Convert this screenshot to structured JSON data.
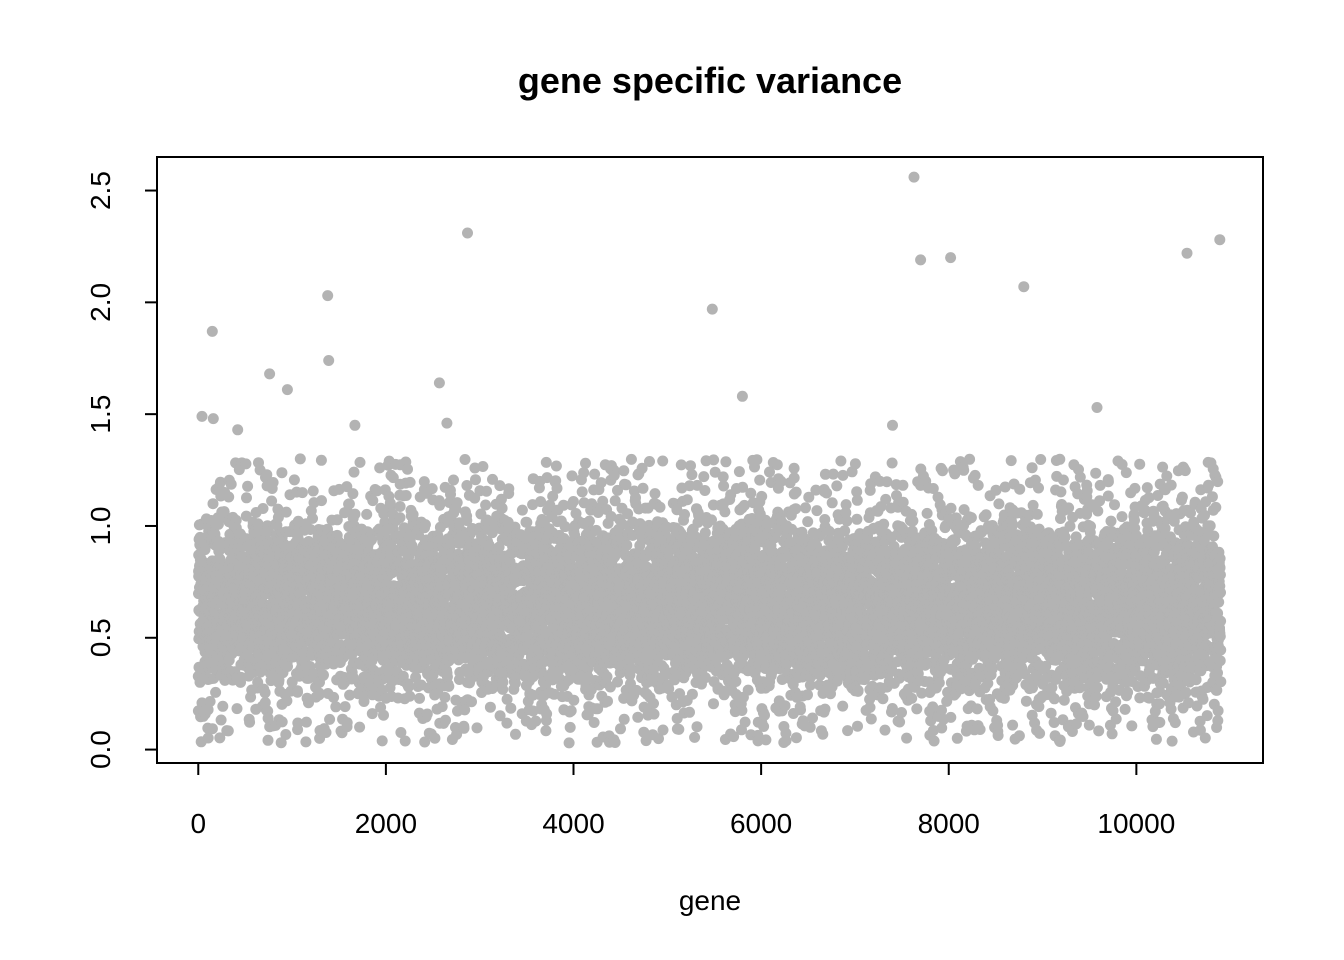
{
  "chart_data": {
    "type": "scatter",
    "title": "gene specific variance",
    "xlabel": "gene",
    "ylabel": "",
    "xlim": [
      -440,
      11350
    ],
    "ylim": [
      -0.06,
      2.65
    ],
    "xticks": [
      0,
      2000,
      4000,
      6000,
      8000,
      10000
    ],
    "xtick_labels": [
      "0",
      "2000",
      "4000",
      "6000",
      "8000",
      "10000"
    ],
    "yticks": [
      0.0,
      0.5,
      1.0,
      1.5,
      2.0,
      2.5
    ],
    "ytick_labels": [
      "0.0",
      "0.5",
      "1.0",
      "1.5",
      "2.0",
      "2.5"
    ],
    "n_points": 10900,
    "point_color": "#b3b3b3",
    "grid": false,
    "legend": "none",
    "outliers": [
      {
        "x": 150,
        "y": 1.87
      },
      {
        "x": 760,
        "y": 1.68
      },
      {
        "x": 950,
        "y": 1.61
      },
      {
        "x": 1380,
        "y": 2.03
      },
      {
        "x": 1390,
        "y": 1.74
      },
      {
        "x": 2570,
        "y": 1.64
      },
      {
        "x": 2870,
        "y": 2.31
      },
      {
        "x": 5480,
        "y": 1.97
      },
      {
        "x": 5800,
        "y": 1.58
      },
      {
        "x": 7630,
        "y": 2.56
      },
      {
        "x": 7700,
        "y": 2.19
      },
      {
        "x": 8020,
        "y": 2.2
      },
      {
        "x": 8800,
        "y": 2.07
      },
      {
        "x": 9580,
        "y": 1.53
      },
      {
        "x": 10540,
        "y": 2.22
      },
      {
        "x": 10890,
        "y": 2.28
      },
      {
        "x": 7400,
        "y": 1.45
      },
      {
        "x": 2650,
        "y": 1.46
      },
      {
        "x": 1670,
        "y": 1.45
      },
      {
        "x": 420,
        "y": 1.43
      },
      {
        "x": 40,
        "y": 1.49
      },
      {
        "x": 160,
        "y": 1.48
      }
    ],
    "bulk": {
      "x_range": [
        0,
        10900
      ],
      "y_range": [
        0.03,
        1.3
      ],
      "y_core": [
        0.2,
        1.2
      ],
      "y_center": 0.6
    }
  }
}
